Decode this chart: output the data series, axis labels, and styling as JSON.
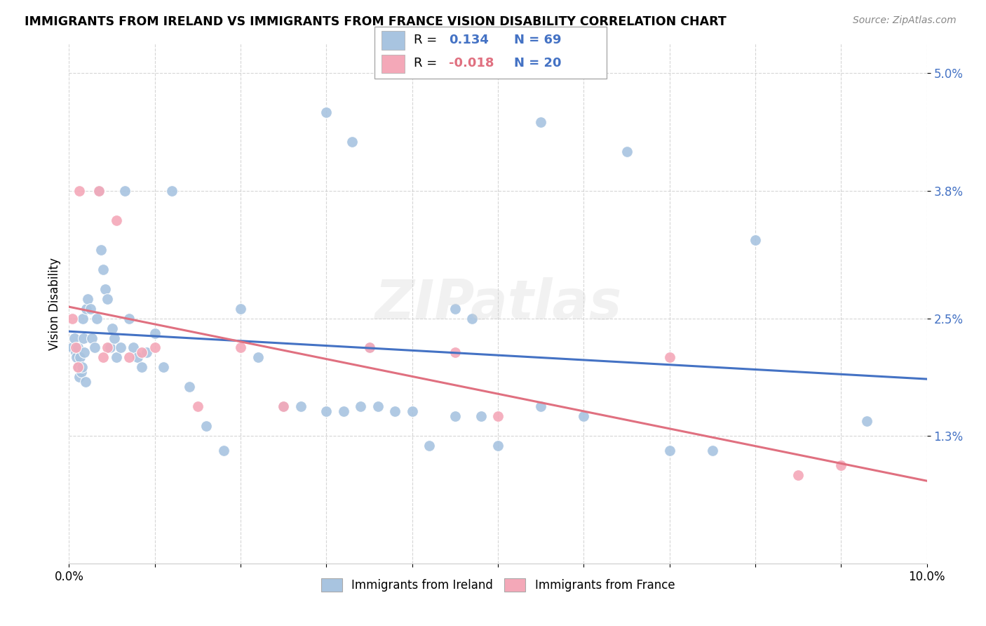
{
  "title": "IMMIGRANTS FROM IRELAND VS IMMIGRANTS FROM FRANCE VISION DISABILITY CORRELATION CHART",
  "source": "Source: ZipAtlas.com",
  "ylabel": "Vision Disability",
  "xlim": [
    0.0,
    10.0
  ],
  "ylim": [
    0.0,
    5.3
  ],
  "yticks": [
    1.3,
    2.5,
    3.8,
    5.0
  ],
  "ytick_labels": [
    "1.3%",
    "2.5%",
    "3.8%",
    "5.0%"
  ],
  "xticks": [
    0,
    1,
    2,
    3,
    4,
    5,
    6,
    7,
    8,
    9,
    10
  ],
  "xtick_labels": [
    "0.0%",
    "",
    "",
    "",
    "",
    "",
    "",
    "",
    "",
    "",
    "10.0%"
  ],
  "ireland_color": "#a8c4e0",
  "france_color": "#f4a8b8",
  "ireland_line_color": "#4472c4",
  "france_line_color": "#e07080",
  "ireland_R": 0.134,
  "ireland_N": 69,
  "france_R": -0.018,
  "france_N": 20,
  "ireland_x": [
    0.04,
    0.06,
    0.08,
    0.09,
    0.1,
    0.11,
    0.12,
    0.13,
    0.14,
    0.15,
    0.16,
    0.17,
    0.18,
    0.19,
    0.2,
    0.22,
    0.25,
    0.27,
    0.3,
    0.32,
    0.35,
    0.37,
    0.4,
    0.42,
    0.45,
    0.48,
    0.5,
    0.53,
    0.55,
    0.6,
    0.65,
    0.7,
    0.75,
    0.8,
    0.85,
    0.9,
    1.0,
    1.1,
    1.2,
    1.4,
    1.6,
    1.8,
    2.0,
    2.2,
    2.5,
    2.7,
    3.0,
    3.2,
    3.4,
    3.5,
    3.6,
    3.8,
    4.0,
    4.2,
    4.5,
    4.8,
    5.0,
    5.5,
    6.0,
    7.0,
    7.5,
    8.0,
    9.3,
    3.0,
    3.3,
    4.5,
    4.7,
    5.5,
    6.5
  ],
  "ireland_y": [
    2.2,
    2.3,
    2.15,
    2.1,
    2.2,
    2.0,
    1.9,
    2.1,
    1.95,
    2.0,
    2.5,
    2.3,
    2.15,
    1.85,
    2.6,
    2.7,
    2.6,
    2.3,
    2.2,
    2.5,
    3.8,
    3.2,
    3.0,
    2.8,
    2.7,
    2.2,
    2.4,
    2.3,
    2.1,
    2.2,
    3.8,
    2.5,
    2.2,
    2.1,
    2.0,
    2.15,
    2.35,
    2.0,
    3.8,
    1.8,
    1.4,
    1.15,
    2.6,
    2.1,
    1.6,
    1.6,
    1.55,
    1.55,
    1.6,
    2.2,
    1.6,
    1.55,
    1.55,
    1.2,
    1.5,
    1.5,
    1.2,
    1.6,
    1.5,
    1.15,
    1.15,
    3.3,
    1.45,
    4.6,
    4.3,
    2.6,
    2.5,
    4.5,
    4.2
  ],
  "france_x": [
    0.04,
    0.08,
    0.12,
    0.35,
    0.45,
    0.55,
    0.85,
    1.0,
    2.0,
    2.5,
    3.5,
    4.5,
    5.0,
    7.0,
    8.5
  ],
  "france_y": [
    2.5,
    2.2,
    3.8,
    3.8,
    2.2,
    3.5,
    2.15,
    2.2,
    2.2,
    1.6,
    2.2,
    2.15,
    1.5,
    2.1,
    0.9
  ],
  "france_x2": [
    0.1,
    0.4,
    0.7,
    1.5,
    9.0
  ],
  "france_y2": [
    2.0,
    2.1,
    2.1,
    1.6,
    1.0
  ],
  "watermark": "ZIPatlas",
  "background_color": "#ffffff",
  "grid_color": "#cccccc"
}
